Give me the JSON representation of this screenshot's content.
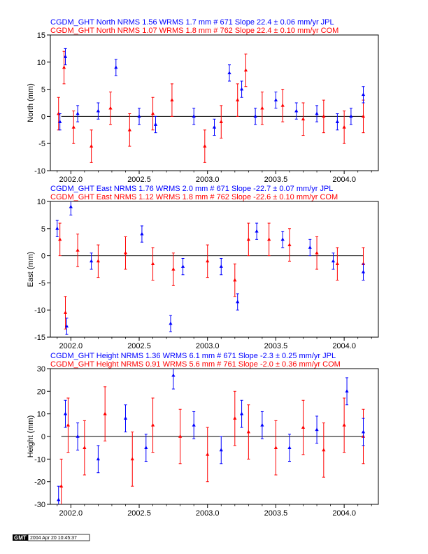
{
  "stamp": {
    "logo": "GMT",
    "text": "2004 Apr 20 10:45:37"
  },
  "chart_data": [
    {
      "type": "scatter",
      "title_jpl": "CGDM_GHT North NRMS 1.56 WRMS  1.7 mm # 671 Slope   22.4 ±  0.06 mm/yr JPL",
      "title_com": "CGDM_GHT North NRMS 1.07 WRMS  1.8 mm # 762 Slope   22.4 ±  0.10 mm/yr COM",
      "ylabel": "North (mm)",
      "xlim": [
        2001.85,
        2004.25
      ],
      "ylim": [
        -10,
        15
      ],
      "xticks": [
        2002.0,
        2002.5,
        2003.0,
        2003.5,
        2004.0
      ],
      "xtick_labels": [
        "2002.0",
        "2002.5",
        "2003.0",
        "2003.5",
        "2004.0"
      ],
      "yticks": [
        -10,
        -5,
        0,
        5,
        10,
        15
      ],
      "ytick_labels": [
        "-10",
        "-5",
        "0",
        "5",
        "10",
        "15"
      ],
      "series": [
        {
          "color": "#ff0000",
          "x": [
            2001.91,
            2001.95,
            2002.02,
            2002.15,
            2002.29,
            2002.43,
            2002.6,
            2002.74,
            2002.98,
            2003.1,
            2003.22,
            2003.28,
            2003.4,
            2003.55,
            2003.7,
            2003.85,
            2004.0,
            2004.14
          ],
          "y": [
            0.5,
            9.0,
            -2.0,
            -5.5,
            1.5,
            -2.5,
            0.5,
            3.0,
            -5.5,
            -1.0,
            3.0,
            8.5,
            1.5,
            2.0,
            -0.5,
            0.0,
            -2.0,
            0.0
          ],
          "err": [
            3.0,
            3.0,
            3.0,
            3.0,
            3.0,
            3.0,
            3.0,
            3.0,
            3.0,
            3.0,
            3.0,
            3.0,
            3.0,
            3.0,
            3.0,
            3.0,
            3.0,
            3.0
          ]
        },
        {
          "color": "#0000ff",
          "x": [
            2001.92,
            2001.96,
            2002.05,
            2002.2,
            2002.33,
            2002.5,
            2002.62,
            2002.9,
            2003.05,
            2003.16,
            2003.25,
            2003.35,
            2003.5,
            2003.65,
            2003.8,
            2003.95,
            2004.05,
            2004.14
          ],
          "y": [
            -1.0,
            11.0,
            0.5,
            1.0,
            9.0,
            0.0,
            -1.5,
            0.0,
            -2.0,
            8.0,
            5.0,
            0.0,
            3.0,
            1.0,
            0.5,
            -1.0,
            0.0,
            4.0
          ],
          "err": [
            1.5,
            1.5,
            1.5,
            1.5,
            1.5,
            1.5,
            1.5,
            1.5,
            1.5,
            1.5,
            1.5,
            1.5,
            1.5,
            1.5,
            1.5,
            1.5,
            1.5,
            1.5
          ]
        }
      ]
    },
    {
      "type": "scatter",
      "title_jpl": "CGDM_GHT East NRMS 1.76 WRMS  2.0 mm # 671 Slope  -22.7 ±  0.07 mm/yr JPL",
      "title_com": "CGDM_GHT East NRMS 1.12 WRMS  1.8 mm # 762 Slope  -22.6 ±  0.10 mm/yr COM",
      "ylabel": "East (mm)",
      "xlim": [
        2001.85,
        2004.25
      ],
      "ylim": [
        -15,
        10
      ],
      "xticks": [
        2002.0,
        2002.5,
        2003.0,
        2003.5,
        2004.0
      ],
      "xtick_labels": [
        "2002.0",
        "2002.5",
        "2003.0",
        "2003.5",
        "2004.0"
      ],
      "yticks": [
        -15,
        -10,
        -5,
        0,
        5,
        10
      ],
      "ytick_labels": [
        "-15",
        "-10",
        "-5",
        "0",
        "5",
        "10"
      ],
      "series": [
        {
          "color": "#ff0000",
          "x": [
            2001.92,
            2001.96,
            2002.05,
            2002.2,
            2002.4,
            2002.6,
            2002.75,
            2003.0,
            2003.2,
            2003.3,
            2003.45,
            2003.6,
            2003.8,
            2003.95,
            2004.14
          ],
          "y": [
            3.0,
            -10.5,
            1.0,
            -1.0,
            0.5,
            -1.5,
            -2.5,
            -1.0,
            -4.5,
            3.0,
            3.0,
            2.0,
            0.5,
            -1.5,
            -1.5
          ],
          "err": [
            3.0,
            3.0,
            3.0,
            3.0,
            3.0,
            3.0,
            3.0,
            3.0,
            3.0,
            3.0,
            3.0,
            3.0,
            3.0,
            3.0,
            3.0
          ]
        },
        {
          "color": "#0000ff",
          "x": [
            2001.9,
            2001.97,
            2002.0,
            2002.15,
            2002.52,
            2002.73,
            2002.82,
            2003.1,
            2003.22,
            2003.36,
            2003.55,
            2003.75,
            2003.92,
            2004.14
          ],
          "y": [
            5.0,
            -13.0,
            9.0,
            -1.0,
            4.0,
            -12.5,
            -2.0,
            -2.0,
            -8.5,
            4.5,
            3.0,
            1.5,
            -1.0,
            -3.0
          ],
          "err": [
            1.5,
            1.5,
            1.5,
            1.5,
            1.5,
            1.5,
            1.5,
            1.5,
            1.5,
            1.5,
            1.5,
            1.5,
            1.5,
            1.5
          ]
        }
      ]
    },
    {
      "type": "scatter",
      "title_jpl": "CGDM_GHT Height NRMS 1.36 WRMS  6.1 mm # 671 Slope   -2.3 ±  0.25 mm/yr JPL",
      "title_com": "CGDM_GHT Height NRMS 0.91 WRMS  5.6 mm # 761 Slope   -2.0 ±  0.36 mm/yr COM",
      "ylabel": "Height (mm)",
      "xlim": [
        2001.85,
        2004.25
      ],
      "ylim": [
        -30,
        30
      ],
      "xticks": [
        2002.0,
        2002.5,
        2003.0,
        2003.5,
        2004.0
      ],
      "xtick_labels": [
        "2002.0",
        "2002.5",
        "2003.0",
        "2003.5",
        "2004.0"
      ],
      "yticks": [
        -30,
        -20,
        -10,
        0,
        10,
        20,
        30
      ],
      "ytick_labels": [
        "-30",
        "-20",
        "-10",
        "0",
        "10",
        "20",
        "30"
      ],
      "series": [
        {
          "color": "#ff0000",
          "x": [
            2001.93,
            2001.98,
            2002.1,
            2002.25,
            2002.45,
            2002.6,
            2002.8,
            2003.0,
            2003.2,
            2003.3,
            2003.5,
            2003.7,
            2003.85,
            2004.0,
            2004.14
          ],
          "y": [
            -22.0,
            5.0,
            -5.0,
            10.0,
            -10.0,
            5.0,
            0.0,
            -8.0,
            8.0,
            2.0,
            -5.0,
            4.0,
            -6.0,
            5.0,
            0.0
          ],
          "err": [
            12.0,
            12.0,
            12.0,
            12.0,
            12.0,
            12.0,
            12.0,
            12.0,
            12.0,
            12.0,
            12.0,
            12.0,
            12.0,
            12.0,
            12.0
          ]
        },
        {
          "color": "#0000ff",
          "x": [
            2001.91,
            2001.96,
            2002.05,
            2002.2,
            2002.4,
            2002.55,
            2002.75,
            2002.9,
            2003.1,
            2003.25,
            2003.4,
            2003.6,
            2003.8,
            2004.02,
            2004.14
          ],
          "y": [
            -28.0,
            10.0,
            0.0,
            -10.0,
            8.0,
            -5.0,
            27.0,
            5.0,
            -6.0,
            10.0,
            5.0,
            -5.0,
            3.0,
            20.0,
            2.0
          ],
          "err": [
            6.0,
            6.0,
            6.0,
            6.0,
            6.0,
            6.0,
            6.0,
            6.0,
            6.0,
            6.0,
            6.0,
            6.0,
            6.0,
            6.0,
            6.0
          ]
        }
      ]
    }
  ]
}
